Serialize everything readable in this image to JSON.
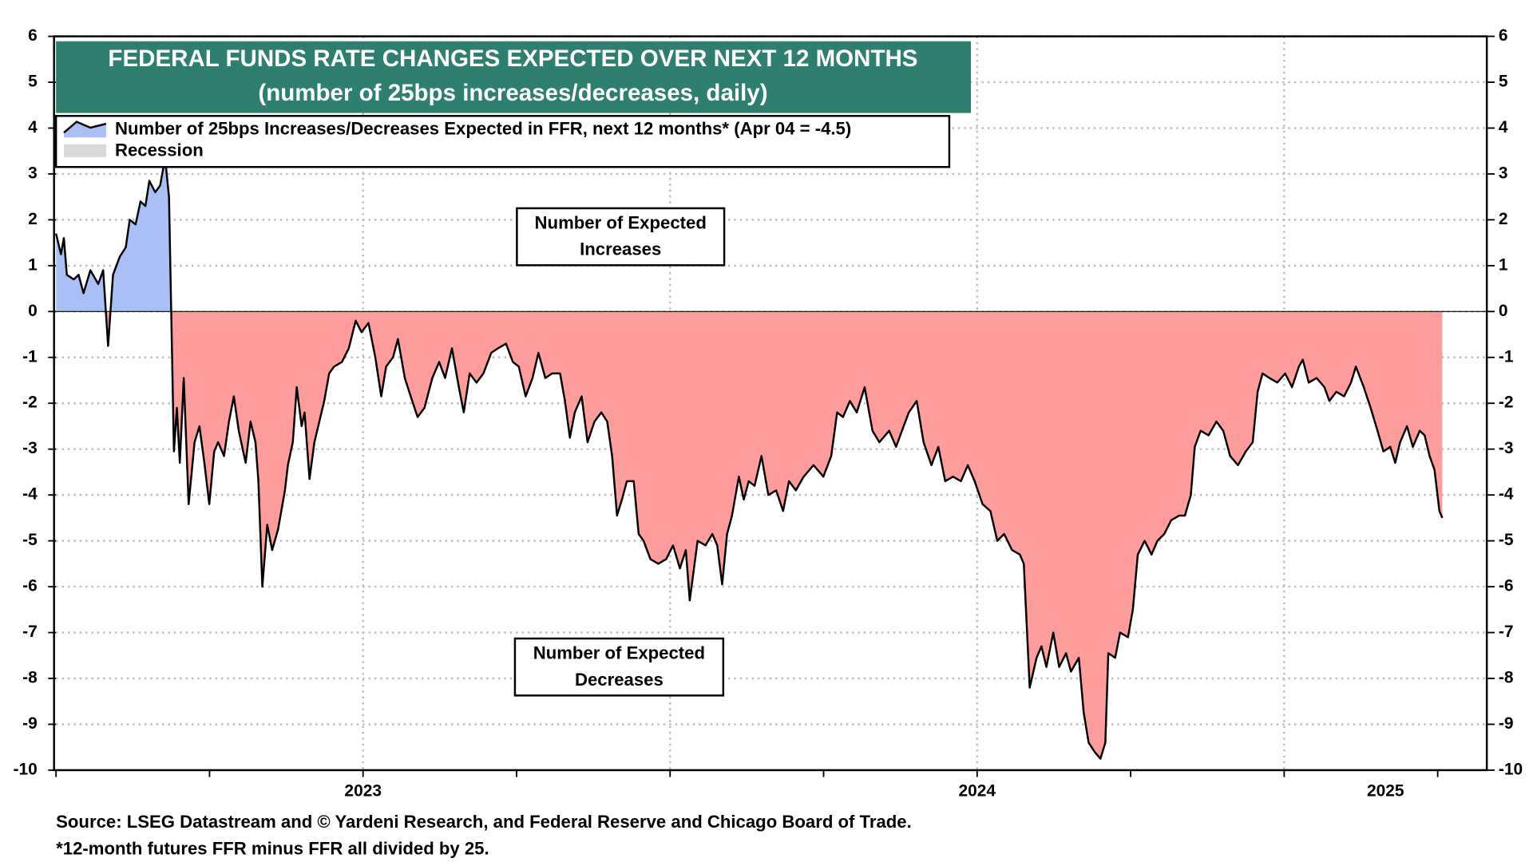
{
  "chart_data": {
    "type": "area",
    "title": "FEDERAL FUNDS RATE CHANGES EXPECTED OVER NEXT 12 MONTHS",
    "subtitle": "(number of 25bps increases/decreases, daily)",
    "title_color": "#2e7f6f",
    "series": [
      {
        "name": "Number of 25bps Increases/Decreases Expected in FFR, next 12 months* (Apr 04 = -4.5)",
        "color": "#000000",
        "fill_above": "#aabff6",
        "fill_below": "#ff9c9c",
        "x": [
          2023.0,
          2023.008,
          2023.0128,
          2023.0176,
          2023.0288,
          2023.0368,
          2023.0448,
          2023.056,
          2023.0688,
          2023.0768,
          2023.0848,
          2023.0928,
          2023.104,
          2023.1136,
          2023.12,
          2023.1296,
          2023.1376,
          2023.1456,
          2023.152,
          2023.1616,
          2023.1696,
          2023.1776,
          2023.184,
          2023.192,
          2023.1968,
          2023.2016,
          2023.208,
          2023.216,
          2023.2256,
          2023.2336,
          2023.2416,
          2023.2496,
          2023.2576,
          2023.264,
          2023.2736,
          2023.2816,
          2023.2896,
          2023.2976,
          2023.3088,
          2023.3168,
          2023.3248,
          2023.3296,
          2023.336,
          2023.344,
          2023.352,
          2023.3616,
          2023.3728,
          2023.3776,
          2023.3856,
          2023.392,
          2023.4,
          2023.4048,
          2023.4128,
          2023.4208,
          2023.4288,
          2023.4368,
          2023.4448,
          2023.4528,
          2023.4656,
          2023.4768,
          2023.488,
          2023.4976,
          2023.5088,
          2023.52,
          2023.5296,
          2023.5376,
          2023.5488,
          2023.5568,
          2023.568,
          2023.5776,
          2023.5888,
          2023.6,
          2023.6128,
          2023.624,
          2023.6336,
          2023.6448,
          2023.656,
          2023.664,
          2023.6736,
          2023.6848,
          2023.696,
          2023.7088,
          2023.72,
          2023.7328,
          2023.744,
          2023.7536,
          2023.7648,
          2023.776,
          2023.7856,
          2023.7968,
          2023.808,
          2023.8208,
          2023.8288,
          2023.8368,
          2023.8448,
          2023.856,
          2023.8656,
          2023.8768,
          2023.888,
          2023.8976,
          2023.9056,
          2023.9136,
          2023.9216,
          2023.9296,
          2023.9408,
          2023.9488,
          2023.9568,
          2023.968,
          2023.9808,
          2023.9936,
          2024.0048,
          2024.016,
          2024.0256,
          2024.032,
          2024.0448,
          2024.0576,
          2024.0688,
          2024.0768,
          2024.0848,
          2024.0928,
          2024.1008,
          2024.112,
          2024.12,
          2024.128,
          2024.1376,
          2024.1488,
          2024.16,
          2024.1728,
          2024.184,
          2024.1936,
          2024.2048,
          2024.2176,
          2024.2336,
          2024.2496,
          2024.2624,
          2024.272,
          2024.2816,
          2024.2928,
          2024.304,
          2024.3168,
          2024.3296,
          2024.3408,
          2024.3568,
          2024.368,
          2024.3776,
          2024.3888,
          2024.4016,
          2024.4128,
          2024.4256,
          2024.4368,
          2024.448,
          2024.4608,
          2024.4736,
          2024.4848,
          2024.496,
          2024.5088,
          2024.5216,
          2024.5328,
          2024.544,
          2024.5568,
          2024.5696,
          2024.576,
          2024.5856,
          2024.5968,
          2024.6048,
          2024.6128,
          2024.624,
          2024.6336,
          2024.6448,
          2024.6528,
          2024.6656,
          2024.6736,
          2024.6816,
          2024.6912,
          2024.7008,
          2024.7088,
          2024.7136,
          2024.7248,
          2024.7328,
          2024.7456,
          2024.7536,
          2024.7616,
          2024.7728,
          2024.784,
          2024.7936,
          2024.8048,
          2024.816,
          2024.8288,
          2024.8384,
          2024.848,
          2024.8544,
          2024.864,
          2024.8768,
          2024.8896,
          2024.9008,
          2024.912,
          2024.9248,
          2024.9376,
          2024.9488,
          2024.9568,
          2024.9648,
          2024.976,
          2024.9888,
          2025.0016,
          2025.0128,
          2025.024,
          2025.0304,
          2025.04,
          2025.0528,
          2025.0656,
          2025.0736,
          2025.0848,
          2025.0976,
          2025.1088,
          2025.1168,
          2025.1296,
          2025.1408,
          2025.152,
          2025.1616,
          2025.1728,
          2025.1808,
          2025.1888,
          2025.2,
          2025.2096,
          2025.2208,
          2025.2288,
          2025.2368,
          2025.2448,
          2025.2528,
          2025.2576
        ],
        "values": [
          1.7,
          1.25,
          1.6,
          0.8,
          0.7,
          0.8,
          0.4,
          0.9,
          0.6,
          0.9,
          -0.75,
          0.8,
          1.2,
          1.4,
          2.0,
          1.9,
          2.4,
          2.3,
          2.85,
          2.6,
          2.75,
          3.35,
          2.5,
          -3.05,
          -2.1,
          -3.3,
          -1.45,
          -4.2,
          -2.85,
          -2.5,
          -3.3,
          -4.2,
          -3.05,
          -2.85,
          -3.15,
          -2.4,
          -1.85,
          -2.6,
          -3.3,
          -2.4,
          -2.85,
          -3.7,
          -6.0,
          -4.65,
          -5.2,
          -4.75,
          -3.9,
          -3.35,
          -2.85,
          -1.65,
          -2.5,
          -2.2,
          -3.65,
          -2.85,
          -2.4,
          -1.95,
          -1.35,
          -1.2,
          -1.1,
          -0.8,
          -0.2,
          -0.45,
          -0.25,
          -1.0,
          -1.85,
          -1.2,
          -1.0,
          -0.6,
          -1.45,
          -1.85,
          -2.3,
          -2.1,
          -1.45,
          -1.1,
          -1.45,
          -0.8,
          -1.65,
          -2.2,
          -1.35,
          -1.55,
          -1.35,
          -0.9,
          -0.8,
          -0.7,
          -1.1,
          -1.2,
          -1.85,
          -1.45,
          -0.9,
          -1.45,
          -1.35,
          -1.35,
          -1.95,
          -2.75,
          -2.2,
          -1.85,
          -2.85,
          -2.4,
          -2.2,
          -2.4,
          -3.15,
          -4.45,
          -4.1,
          -3.7,
          -3.7,
          -4.85,
          -5.0,
          -5.4,
          -5.5,
          -5.4,
          -5.1,
          -5.6,
          -5.2,
          -6.3,
          -5.0,
          -5.1,
          -4.85,
          -5.1,
          -5.95,
          -4.85,
          -4.45,
          -3.6,
          -4.1,
          -3.7,
          -3.8,
          -3.15,
          -4.0,
          -3.9,
          -4.35,
          -3.7,
          -3.9,
          -3.6,
          -3.35,
          -3.6,
          -3.15,
          -2.2,
          -2.3,
          -1.95,
          -2.2,
          -1.65,
          -2.6,
          -2.85,
          -2.6,
          -2.95,
          -2.6,
          -2.2,
          -1.95,
          -2.85,
          -3.35,
          -2.95,
          -3.7,
          -3.6,
          -3.7,
          -3.35,
          -3.7,
          -4.2,
          -4.35,
          -5.0,
          -4.85,
          -5.2,
          -5.3,
          -5.5,
          -8.2,
          -7.55,
          -7.3,
          -7.75,
          -7.0,
          -7.75,
          -7.45,
          -7.85,
          -7.55,
          -8.75,
          -9.4,
          -9.6,
          -9.75,
          -9.4,
          -7.45,
          -7.55,
          -7.0,
          -7.1,
          -6.5,
          -5.3,
          -5.0,
          -5.3,
          -5.0,
          -4.85,
          -4.55,
          -4.45,
          -4.45,
          -4.0,
          -2.95,
          -2.6,
          -2.7,
          -2.4,
          -2.6,
          -3.15,
          -3.35,
          -3.05,
          -2.85,
          -1.75,
          -1.35,
          -1.45,
          -1.55,
          -1.35,
          -1.65,
          -1.2,
          -1.05,
          -1.55,
          -1.45,
          -1.65,
          -1.95,
          -1.75,
          -1.85,
          -1.55,
          -1.2,
          -1.65,
          -2.1,
          -2.6,
          -3.05,
          -2.95,
          -3.3,
          -2.85,
          -2.5,
          -2.95,
          -2.6,
          -2.7,
          -3.15,
          -3.45,
          -4.35,
          -4.5
        ]
      }
    ],
    "recession_label": "Recession",
    "recession_color": "#d9d9d9",
    "annotations": [
      [
        "Number of Expected",
        "Increases"
      ],
      [
        "Number of Expected",
        "Decreases"
      ]
    ],
    "xlim": [
      2023.0,
      2025.33
    ],
    "xticks": [
      {
        "value": 2023.5,
        "label": "2023"
      },
      {
        "value": 2024.5,
        "label": "2024"
      },
      {
        "value": 2025.165,
        "label": "2025"
      }
    ],
    "xgrid": [
      2023.5,
      2024.0,
      2024.5,
      2025.0
    ],
    "xminor": [
      2023.0,
      2023.25,
      2023.5,
      2023.75,
      2024.0,
      2024.25,
      2024.5,
      2024.75,
      2025.0,
      2025.25
    ],
    "ylim": [
      -10,
      6
    ],
    "yticks": [
      -10,
      -9,
      -8,
      -7,
      -6,
      -5,
      -4,
      -3,
      -2,
      -1,
      0,
      1,
      2,
      3,
      4,
      5,
      6
    ],
    "grid": true,
    "source": "Source: LSEG Datastream and © Yardeni Research, and Federal Reserve and Chicago Board of Trade.",
    "footnote": "*12-month futures FFR minus FFR all divided by 25."
  }
}
